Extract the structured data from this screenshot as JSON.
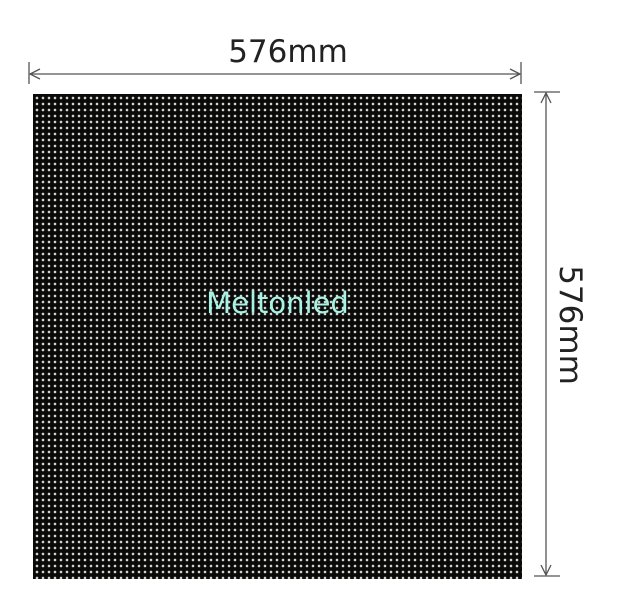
{
  "width_label": "576mm",
  "height_label": "576mm",
  "panel": {
    "brand": "Meltonled",
    "brand_color": "#a6f2e4",
    "background_color": "#0a0a0a"
  }
}
